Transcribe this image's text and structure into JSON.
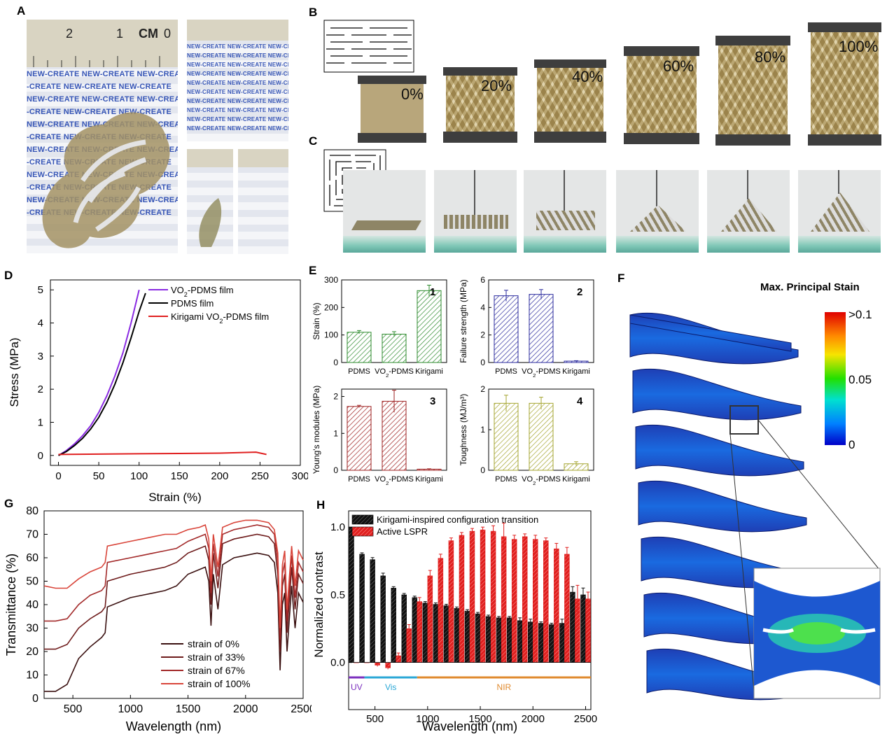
{
  "panel_labels": [
    "A",
    "B",
    "C",
    "D",
    "E",
    "F",
    "G",
    "H"
  ],
  "panelA": {
    "ruler_text": "0 CM 1 2",
    "film_brand_text": "NEW-CREATE"
  },
  "panelB": {
    "strain_labels": [
      "0%",
      "20%",
      "40%",
      "60%",
      "80%",
      "100%"
    ]
  },
  "panelF": {
    "title": "Max. Principal Stain",
    "ticks": [
      ">0.1",
      "0.05",
      "0"
    ]
  },
  "chart_data": [
    {
      "id": "D",
      "type": "line",
      "xlabel": "Strain (%)",
      "ylabel": "Stress (MPa)",
      "xlim": [
        -10,
        300
      ],
      "ylim": [
        -0.3,
        5.3
      ],
      "xticks": [
        "0",
        "50",
        "100",
        "150",
        "200",
        "250",
        "300"
      ],
      "yticks": [
        "0",
        "1",
        "2",
        "3",
        "4",
        "5"
      ],
      "legend_position": "top-right",
      "series": [
        {
          "name": "VO2-PDMS film",
          "color": "#8a2be2",
          "x": [
            0,
            10,
            20,
            30,
            40,
            50,
            60,
            70,
            80,
            90,
            100
          ],
          "y": [
            0,
            0.15,
            0.35,
            0.6,
            0.9,
            1.3,
            1.8,
            2.4,
            3.1,
            4.0,
            5.0
          ]
        },
        {
          "name": "PDMS film",
          "color": "#000000",
          "x": [
            0,
            10,
            20,
            30,
            40,
            50,
            60,
            70,
            80,
            90,
            100,
            108
          ],
          "y": [
            0,
            0.12,
            0.3,
            0.52,
            0.8,
            1.15,
            1.6,
            2.15,
            2.8,
            3.55,
            4.35,
            4.9
          ]
        },
        {
          "name": "Kirigami VO2-PDMS film",
          "color": "#e02020",
          "x": [
            0,
            50,
            100,
            150,
            200,
            245,
            258
          ],
          "y": [
            0.03,
            0.04,
            0.05,
            0.06,
            0.07,
            0.1,
            0.03
          ]
        }
      ]
    },
    {
      "id": "E1",
      "type": "bar",
      "panel_number": "1",
      "ylabel": "Strain (%)",
      "categories": [
        "PDMS",
        "VO2-PDMS",
        "Kirigami"
      ],
      "values": [
        110,
        103,
        261
      ],
      "errors": [
        6,
        9,
        20
      ],
      "ylim": [
        0,
        300
      ],
      "yticks": [
        "0",
        "100",
        "200",
        "300"
      ],
      "color": "#2e8b2e"
    },
    {
      "id": "E2",
      "type": "bar",
      "panel_number": "2",
      "ylabel": "Failure strength (MPa)",
      "categories": [
        "PDMS",
        "VO2-PDMS",
        "Kirigami"
      ],
      "values": [
        4.85,
        4.95,
        0.1
      ],
      "errors": [
        0.4,
        0.35,
        0.03
      ],
      "ylim": [
        0,
        6
      ],
      "yticks": [
        "0",
        "2",
        "4",
        "6"
      ],
      "color": "#2b2b9e"
    },
    {
      "id": "E3",
      "type": "bar",
      "panel_number": "3",
      "ylabel": "Young's modules (MPa)",
      "categories": [
        "PDMS",
        "VO2-PDMS",
        "Kirigami"
      ],
      "values": [
        1.73,
        1.87,
        0.03
      ],
      "errors": [
        0.03,
        0.3,
        0.01
      ],
      "ylim": [
        0,
        2.2
      ],
      "yticks": [
        "0",
        "1",
        "2"
      ],
      "color": "#9e2020"
    },
    {
      "id": "E4",
      "type": "bar",
      "panel_number": "4",
      "ylabel": "Toughness (MJ/m³)",
      "categories": [
        "PDMS",
        "VO2-PDMS",
        "Kirigami"
      ],
      "values": [
        1.65,
        1.65,
        0.16
      ],
      "errors": [
        0.2,
        0.15,
        0.05
      ],
      "ylim": [
        0,
        2
      ],
      "yticks": [
        "0",
        "1",
        "2"
      ],
      "color": "#a5a530"
    },
    {
      "id": "G",
      "type": "line",
      "xlabel": "Wavelength (nm)",
      "ylabel": "Transmittance (%)",
      "xlim": [
        250,
        2500
      ],
      "ylim": [
        0,
        80
      ],
      "xticks": [
        "500",
        "1000",
        "1500",
        "2000",
        "2500"
      ],
      "yticks": [
        "0",
        "10",
        "20",
        "30",
        "40",
        "50",
        "60",
        "70",
        "80"
      ],
      "legend_position": "bottom-right",
      "series": [
        {
          "name": "strain of 0%",
          "color": "#3a1010",
          "x": [
            250,
            350,
            450,
            550,
            650,
            750,
            780,
            800,
            1000,
            1100,
            1200,
            1300,
            1400,
            1500,
            1600,
            1650,
            1680,
            1700,
            1720,
            1760,
            1800,
            1900,
            2000,
            2100,
            2200,
            2250,
            2280,
            2300,
            2320,
            2340,
            2360,
            2400,
            2430,
            2460,
            2500
          ],
          "y": [
            3,
            3,
            6,
            17,
            22,
            26,
            28,
            39,
            43,
            44,
            45,
            46,
            48,
            53,
            55,
            56,
            50,
            31,
            53,
            38,
            57,
            60,
            61,
            62,
            61,
            58,
            45,
            12,
            40,
            45,
            20,
            48,
            30,
            45,
            41
          ]
        },
        {
          "name": "strain of 33%",
          "color": "#6e1b1b",
          "x": [
            250,
            350,
            450,
            550,
            650,
            750,
            780,
            800,
            1000,
            1100,
            1200,
            1300,
            1400,
            1500,
            1600,
            1650,
            1680,
            1700,
            1720,
            1760,
            1800,
            1900,
            2000,
            2100,
            2200,
            2250,
            2280,
            2300,
            2320,
            2340,
            2360,
            2400,
            2430,
            2460,
            2500
          ],
          "y": [
            21,
            21,
            23,
            30,
            34,
            37,
            39,
            50,
            53,
            54,
            55,
            56,
            58,
            62,
            64,
            65,
            59,
            40,
            62,
            47,
            66,
            68,
            69,
            70,
            69,
            66,
            53,
            20,
            48,
            53,
            28,
            56,
            38,
            53,
            49
          ]
        },
        {
          "name": "strain of 67%",
          "color": "#a32a2a",
          "x": [
            250,
            350,
            450,
            550,
            650,
            750,
            780,
            800,
            1000,
            1100,
            1200,
            1300,
            1400,
            1500,
            1600,
            1650,
            1680,
            1700,
            1720,
            1760,
            1800,
            1900,
            2000,
            2100,
            2200,
            2250,
            2280,
            2300,
            2320,
            2340,
            2360,
            2400,
            2430,
            2460,
            2500
          ],
          "y": [
            33,
            33,
            34,
            40,
            44,
            46,
            48,
            58,
            60,
            61,
            62,
            63,
            64,
            67,
            69,
            70,
            64,
            45,
            66,
            52,
            70,
            72,
            73,
            74,
            73,
            70,
            58,
            25,
            53,
            58,
            33,
            61,
            43,
            58,
            54
          ]
        },
        {
          "name": "strain of 100%",
          "color": "#d9453a",
          "x": [
            250,
            350,
            450,
            550,
            650,
            750,
            780,
            800,
            1000,
            1100,
            1200,
            1300,
            1400,
            1500,
            1600,
            1650,
            1680,
            1700,
            1720,
            1760,
            1800,
            1900,
            2000,
            2100,
            2200,
            2250,
            2280,
            2300,
            2320,
            2340,
            2360,
            2400,
            2430,
            2460,
            2500
          ],
          "y": [
            48,
            47,
            47,
            51,
            54,
            56,
            58,
            65,
            67,
            68,
            69,
            70,
            70,
            72,
            73,
            74,
            68,
            50,
            70,
            56,
            73,
            75,
            76,
            76,
            75,
            72,
            62,
            30,
            57,
            63,
            38,
            65,
            48,
            63,
            59
          ]
        }
      ]
    },
    {
      "id": "H",
      "type": "bar",
      "xlabel": "Wavelength (nm)",
      "ylabel": "Normalized contrast",
      "xlim": [
        250,
        2550
      ],
      "ylim": [
        -0.1,
        1.12
      ],
      "xticks": [
        "500",
        "1000",
        "1500",
        "2000",
        "2500"
      ],
      "yticks": [
        "0.0",
        "0.5",
        "1.0"
      ],
      "legend_position": "top-left",
      "band_labels": [
        "UV",
        "Vis",
        "NIR"
      ],
      "band_ranges": [
        [
          250,
          400
        ],
        [
          400,
          900
        ],
        [
          900,
          2550
        ]
      ],
      "band_colors": [
        "#7b2fbe",
        "#2aa7d6",
        "#e08a2e"
      ],
      "wavelengths": [
        300,
        400,
        500,
        600,
        700,
        800,
        900,
        1000,
        1100,
        1200,
        1300,
        1400,
        1500,
        1600,
        1700,
        1800,
        1900,
        2000,
        2100,
        2200,
        2300,
        2400,
        2500
      ],
      "series": [
        {
          "name": "Kirigami-inspired configuration transition",
          "color": "#111111",
          "values": [
            1.0,
            0.8,
            0.76,
            0.64,
            0.55,
            0.5,
            0.48,
            0.44,
            0.43,
            0.42,
            0.4,
            0.38,
            0.36,
            0.34,
            0.33,
            0.33,
            0.31,
            0.3,
            0.29,
            0.28,
            0.29,
            0.52,
            0.5
          ],
          "errors": [
            0.0,
            0.01,
            0.015,
            0.02,
            0.01,
            0.01,
            0.01,
            0.01,
            0.01,
            0.01,
            0.01,
            0.01,
            0.01,
            0.01,
            0.01,
            0.01,
            0.02,
            0.02,
            0.01,
            0.01,
            0.03,
            0.04,
            0.05
          ]
        },
        {
          "name": "Active LSPR",
          "color": "#e0201f",
          "values": [
            0.0,
            0.0,
            -0.02,
            -0.04,
            0.05,
            0.25,
            0.45,
            0.64,
            0.77,
            0.9,
            0.94,
            0.97,
            0.98,
            0.97,
            0.93,
            0.91,
            0.93,
            0.91,
            0.9,
            0.84,
            0.8,
            0.47,
            0.47
          ],
          "errors": [
            0.0,
            0.0,
            0.01,
            0.01,
            0.02,
            0.03,
            0.03,
            0.04,
            0.03,
            0.02,
            0.02,
            0.02,
            0.02,
            0.04,
            0.1,
            0.03,
            0.02,
            0.03,
            0.02,
            0.04,
            0.05,
            0.1,
            0.05
          ]
        }
      ]
    }
  ]
}
